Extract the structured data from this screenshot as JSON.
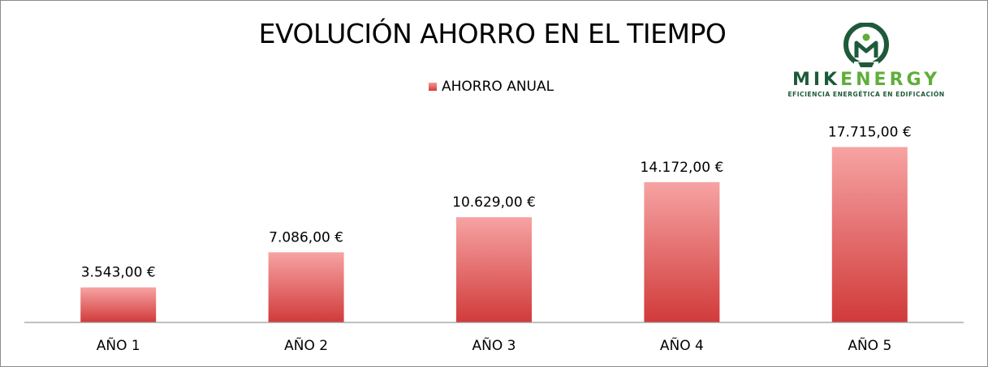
{
  "chart_data": {
    "type": "bar",
    "title": "EVOLUCIÓN AHORRO EN EL TIEMPO",
    "legend": "AHORRO ANUAL",
    "legend_position": "top",
    "categories": [
      "AÑO 1",
      "AÑO 2",
      "AÑO 3",
      "AÑO 4",
      "AÑO 5"
    ],
    "series": [
      {
        "name": "AHORRO ANUAL",
        "values": [
          3543.0,
          7086.0,
          10629.0,
          14172.0,
          17715.0
        ]
      }
    ],
    "data_labels": [
      "3.543,00 €",
      "7.086,00 €",
      "10.629,00 €",
      "14.172,00 €",
      "17.715,00 €"
    ],
    "ylim": [
      0,
      20000
    ],
    "grid": false,
    "colors": {
      "bar_top": "#f7a3a3",
      "bar_bottom": "#d13a3a",
      "axis": "#9a9a9a"
    }
  },
  "logo": {
    "name_part1": "MIK",
    "name_part2": "ENERGY",
    "tagline": "EFICIENCIA ENERGÉTICA EN EDIFICACIÓN",
    "colors": {
      "dark": "#1e5a3a",
      "light": "#5fae3a"
    }
  }
}
